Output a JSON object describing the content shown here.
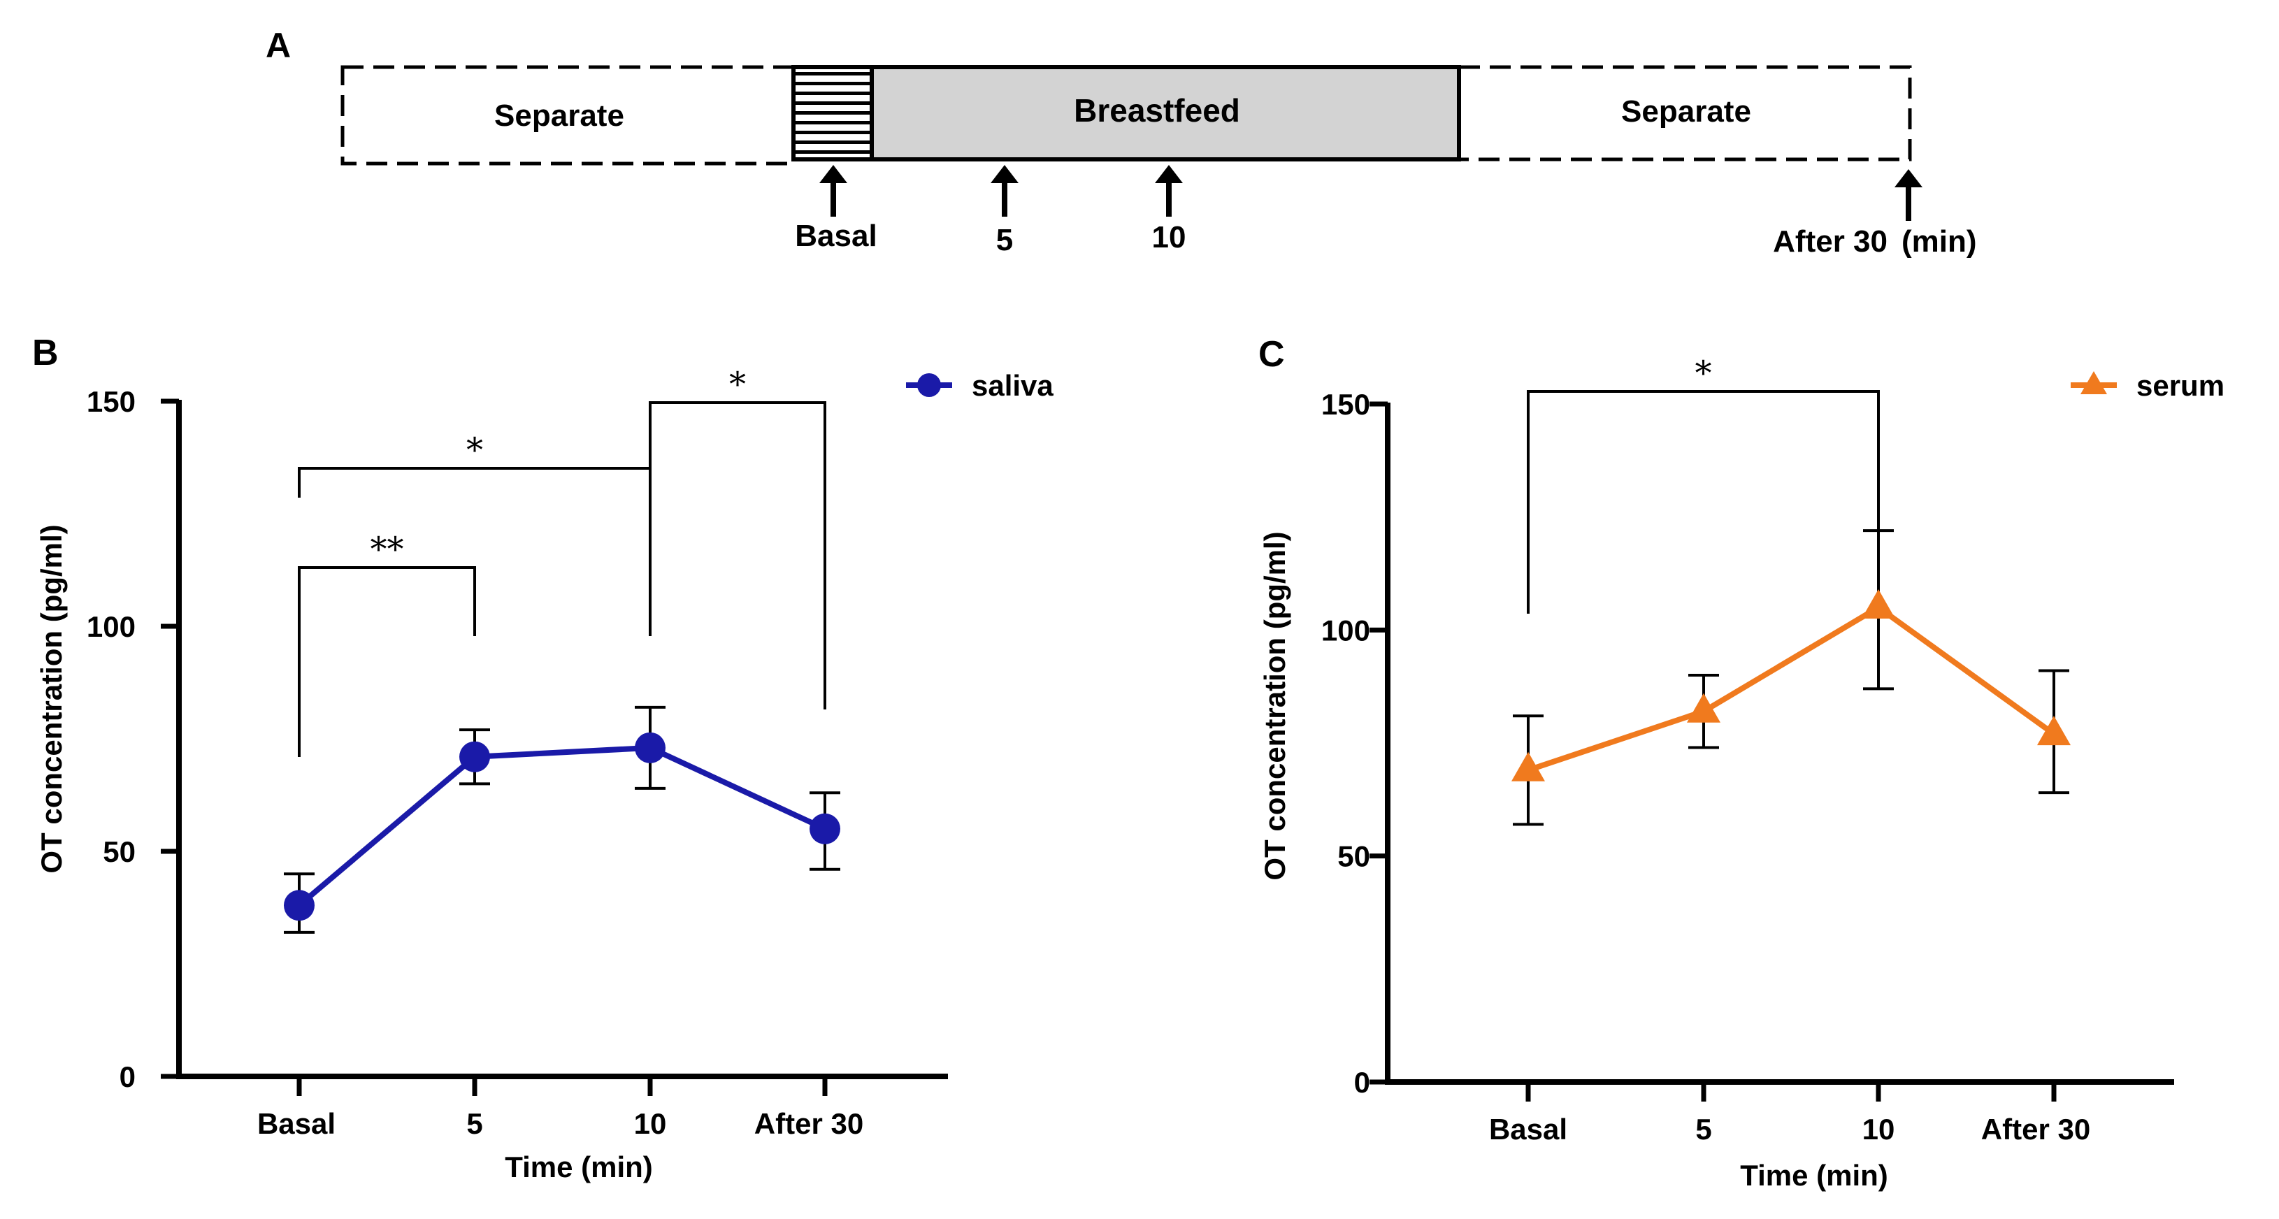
{
  "panel_a": {
    "label": "A",
    "segments": {
      "separate_before": "Separate",
      "breastfeed": "Breastfeed",
      "separate_after": "Separate"
    },
    "timepoints": [
      "Basal",
      "5",
      "10",
      "After 30"
    ],
    "unit": "(min)"
  },
  "colors": {
    "saliva": "#1a1aa8",
    "serum": "#f07a1e",
    "breastfeed_fill": "#d3d3d3"
  },
  "chart_data": [
    {
      "panel": "B",
      "type": "line",
      "categories": [
        "Basal",
        "5",
        "10",
        "After 30"
      ],
      "series": [
        {
          "name": "saliva",
          "marker": "circle",
          "values": [
            38,
            71,
            73,
            55
          ],
          "error_upper": [
            45,
            77,
            82,
            63
          ],
          "error_lower": [
            32,
            65,
            64,
            46
          ]
        }
      ],
      "xlabel": "Time (min)",
      "ylabel": "OT concentration (pg/ml)",
      "ylim": [
        0,
        150
      ],
      "yticks": [
        0,
        50,
        100,
        150
      ],
      "legend": "top-right",
      "significance": [
        {
          "from": 0,
          "to": 2,
          "label": "*"
        },
        {
          "from": 0,
          "to": 1,
          "label": "**"
        },
        {
          "from": 2,
          "to": 3,
          "label": "*"
        }
      ]
    },
    {
      "panel": "C",
      "type": "line",
      "categories": [
        "Basal",
        "5",
        "10",
        "After 30"
      ],
      "series": [
        {
          "name": "serum",
          "marker": "triangle",
          "values": [
            69,
            82,
            105,
            77
          ],
          "error_upper": [
            81,
            90,
            122,
            91
          ],
          "error_lower": [
            57,
            74,
            87,
            64
          ]
        }
      ],
      "xlabel": "Time (min)",
      "ylabel": "OT concentration (pg/ml)",
      "ylim": [
        0,
        150
      ],
      "yticks": [
        0,
        50,
        100,
        150
      ],
      "legend": "top-right",
      "significance": [
        {
          "from": 0,
          "to": 2,
          "label": "*"
        }
      ]
    }
  ]
}
